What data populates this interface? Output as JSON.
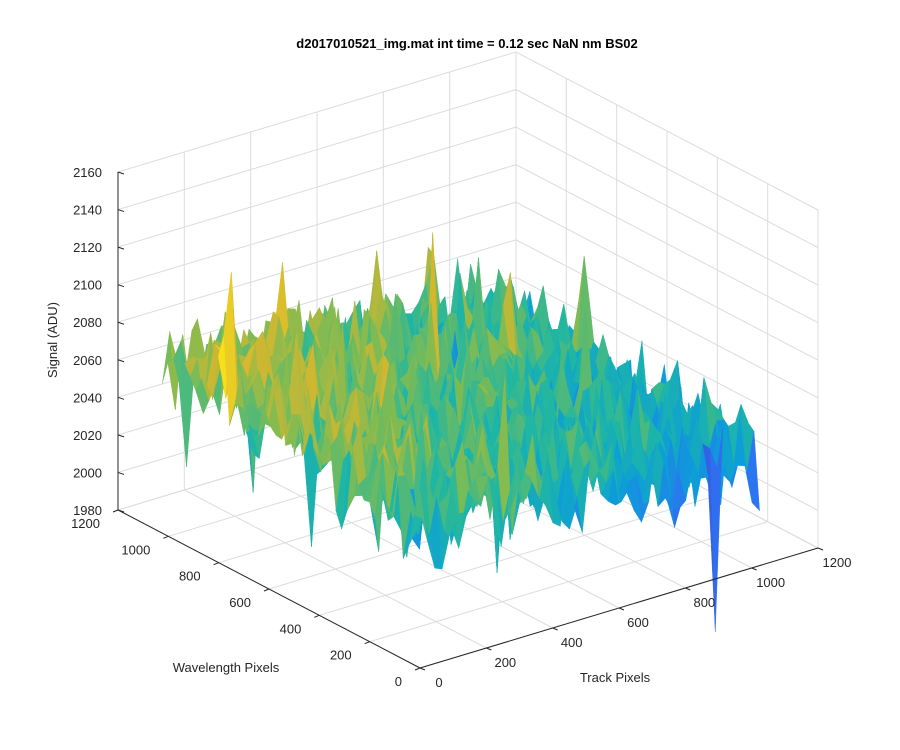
{
  "chart_data": {
    "type": "surface",
    "title": "d2017010521_img.mat int time = 0.12 sec  NaN nm BS02",
    "xlabel": "Track Pixels",
    "ylabel": "Wavelength Pixels",
    "zlabel": "Signal (ADU)",
    "xlim": [
      0,
      1200
    ],
    "ylim": [
      0,
      1200
    ],
    "zlim": [
      1980,
      2160
    ],
    "x_ticks": [
      0,
      200,
      400,
      600,
      800,
      1000,
      1200
    ],
    "y_ticks": [
      0,
      200,
      400,
      600,
      800,
      1000,
      1200
    ],
    "z_ticks": [
      1980,
      2000,
      2020,
      2040,
      2060,
      2080,
      2100,
      2120,
      2140,
      2160
    ],
    "x_tick_labels": [
      "0",
      "200",
      "400",
      "600",
      "800",
      "1000",
      "1200"
    ],
    "y_tick_labels": [
      "0",
      "200",
      "400",
      "600",
      "800",
      "1000",
      "1200"
    ],
    "z_tick_labels": [
      "1980",
      "2000",
      "2020",
      "2040",
      "2060",
      "2080",
      "2100",
      "2120",
      "2140",
      "2160"
    ],
    "data_extent": {
      "x": [
        0,
        1024
      ],
      "y": [
        0,
        1024
      ]
    },
    "surface_mean_signal": {
      "x": [
        0,
        256,
        512,
        768,
        1024
      ],
      "y": [
        0,
        256,
        512,
        768,
        1024
      ],
      "z": [
        [
          2058,
          2052,
          2046,
          2040,
          2035
        ],
        [
          2063,
          2057,
          2051,
          2045,
          2040
        ],
        [
          2068,
          2062,
          2056,
          2050,
          2045
        ],
        [
          2072,
          2066,
          2060,
          2054,
          2049
        ],
        [
          2075,
          2069,
          2063,
          2057,
          2052
        ]
      ]
    },
    "noise_amplitude": 25,
    "colormap": "parula",
    "colormap_colors": [
      "#3e26a8",
      "#2f70f2",
      "#0c9ed8",
      "#1fb7a3",
      "#7dbb54",
      "#d5b72e",
      "#f6d91f",
      "#f9fb0e"
    ],
    "grid": true,
    "view": "3d"
  }
}
